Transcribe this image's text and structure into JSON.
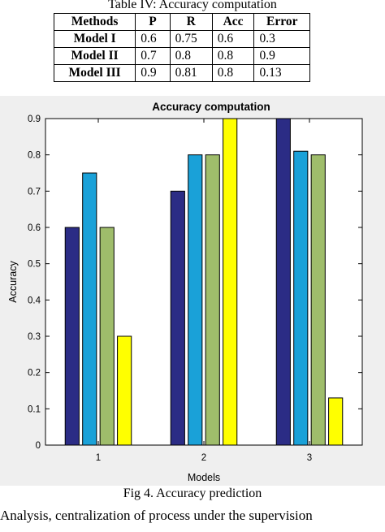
{
  "table": {
    "caption": "Table IV: Accuracy computation",
    "headers": [
      "Methods",
      "P",
      "R",
      "Acc",
      "Error"
    ],
    "rows": [
      {
        "label": "Model I",
        "p": "0.6",
        "r": "0.75",
        "acc": "0.6",
        "error": "0.3"
      },
      {
        "label": "Model II",
        "p": "0.7",
        "r": "0.8",
        "acc": "0.8",
        "error": "0.9"
      },
      {
        "label": "Model III",
        "p": "0.9",
        "r": "0.81",
        "acc": "0.8",
        "error": "0.13"
      }
    ]
  },
  "chart_data": {
    "type": "bar",
    "title": "Accuracy computation",
    "xlabel": "Models",
    "ylabel": "Accuracy",
    "categories": [
      "1",
      "2",
      "3"
    ],
    "series": [
      {
        "values": [
          0.6,
          0.7,
          0.9
        ],
        "color": "#2b2c85"
      },
      {
        "values": [
          0.75,
          0.8,
          0.81
        ],
        "color": "#1aa1d8"
      },
      {
        "values": [
          0.6,
          0.8,
          0.8
        ],
        "color": "#9fbd6b"
      },
      {
        "values": [
          0.3,
          0.9,
          0.13
        ],
        "color": "#ffff00"
      }
    ],
    "ylim": [
      0,
      0.9
    ],
    "yticks": [
      "0",
      "0.1",
      "0.2",
      "0.3",
      "0.4",
      "0.5",
      "0.6",
      "0.7",
      "0.8",
      "0.9"
    ],
    "xlim": [
      0.5,
      3.5
    ],
    "grid": false,
    "legend": "none"
  },
  "figure": {
    "caption": "Fig 4. Accuracy prediction"
  },
  "body_text": "Analysis, centralization of process under the supervision"
}
